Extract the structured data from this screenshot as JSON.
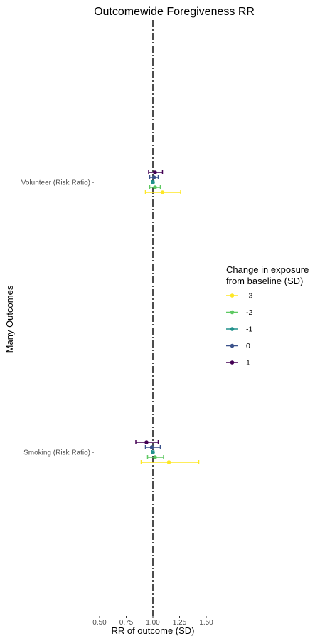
{
  "chart_data": {
    "type": "scatter",
    "title": "Outcomewide Foregiveness RR",
    "xlabel": "RR of outcome (SD)",
    "ylabel": "Many Outcomes",
    "xlim": [
      0.5,
      1.5
    ],
    "xticks": [
      0.5,
      0.75,
      1.0,
      1.25,
      1.5
    ],
    "xtick_labels": [
      "0.50",
      "0.75",
      "1.00",
      "1.25",
      "1.50"
    ],
    "reference_line": 1.0,
    "grid": false,
    "legend_placement": "right",
    "legend_title_lines": [
      "Change in exposure",
      "from baseline (SD)"
    ],
    "categories": [
      "Volunteer (Risk Ratio)",
      "Smoking (Risk Ratio)"
    ],
    "series": [
      {
        "name": "-3",
        "color": "#fde725",
        "points": [
          {
            "estimate": 1.09,
            "lower": 0.93,
            "upper": 1.26
          },
          {
            "estimate": 1.15,
            "lower": 0.89,
            "upper": 1.43
          }
        ]
      },
      {
        "name": "-2",
        "color": "#5ec962",
        "points": [
          {
            "estimate": 1.02,
            "lower": 0.97,
            "upper": 1.07
          },
          {
            "estimate": 1.02,
            "lower": 0.95,
            "upper": 1.1
          }
        ]
      },
      {
        "name": "-1",
        "color": "#21918c",
        "points": [
          {
            "estimate": 1.0,
            "lower": 0.99,
            "upper": 1.01
          },
          {
            "estimate": 1.0,
            "lower": 0.99,
            "upper": 1.01
          }
        ]
      },
      {
        "name": "0",
        "color": "#3b528b",
        "points": [
          {
            "estimate": 1.01,
            "lower": 0.97,
            "upper": 1.05
          },
          {
            "estimate": 0.99,
            "lower": 0.93,
            "upper": 1.07
          }
        ]
      },
      {
        "name": "1",
        "color": "#440154",
        "points": [
          {
            "estimate": 1.02,
            "lower": 0.96,
            "upper": 1.09
          },
          {
            "estimate": 0.94,
            "lower": 0.84,
            "upper": 1.05
          }
        ]
      }
    ]
  }
}
